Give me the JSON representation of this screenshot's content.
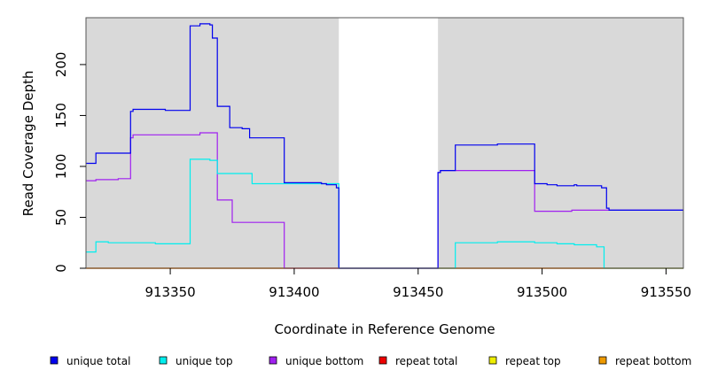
{
  "chart_data": {
    "type": "line",
    "xlabel": "Coordinate in Reference Genome",
    "ylabel": "Read Coverage Depth",
    "xlim": [
      913316,
      913557
    ],
    "ylim": [
      0,
      246
    ],
    "x_ticks": [
      "913350",
      "913400",
      "913450",
      "913500",
      "913550"
    ],
    "y_ticks": [
      "0",
      "50",
      "100",
      "150",
      "200"
    ],
    "grid": false,
    "background_color": "#d9d9d9",
    "gap_color": "#ffffff",
    "shaded_regions": [
      [
        913316,
        913418
      ],
      [
        913458,
        913557
      ]
    ],
    "legend_position": "bottom",
    "series": [
      {
        "name": "unique total",
        "color": "#0000ee",
        "x": [
          913316,
          913320,
          913320,
          913334,
          913334,
          913335,
          913335,
          913348,
          913348,
          913358,
          913358,
          913362,
          913362,
          913366,
          913366,
          913367,
          913367,
          913369,
          913369,
          913374,
          913374,
          913379,
          913379,
          913382,
          913382,
          913383,
          913383,
          913396,
          913396,
          913411,
          913411,
          913413,
          913413,
          913417,
          913417,
          913418,
          913418,
          913458,
          913458,
          913459,
          913459,
          913465,
          913465,
          913482,
          913482,
          913497,
          913497,
          913502,
          913502,
          913506,
          913506,
          913513,
          913513,
          913514,
          913514,
          913524,
          913524,
          913526,
          913526,
          913527,
          913527,
          913557
        ],
        "y": [
          103,
          103,
          113,
          113,
          154,
          154,
          156,
          156,
          155,
          155,
          238,
          238,
          240,
          240,
          239,
          239,
          226,
          226,
          159,
          159,
          138,
          138,
          137,
          137,
          128,
          128,
          128,
          128,
          84,
          84,
          83,
          83,
          82,
          82,
          79,
          79,
          0,
          0,
          94,
          94,
          96,
          96,
          121,
          121,
          122,
          122,
          83,
          83,
          82,
          82,
          81,
          81,
          82,
          82,
          81,
          81,
          79,
          79,
          59,
          59,
          57,
          57
        ]
      },
      {
        "name": "unique top",
        "color": "#00eeee",
        "x": [
          913316,
          913320,
          913320,
          913325,
          913325,
          913344,
          913344,
          913348,
          913348,
          913358,
          913358,
          913366,
          913366,
          913369,
          913369,
          913382,
          913382,
          913383,
          913383,
          913396,
          913396,
          913418,
          913418,
          913465,
          913465,
          913482,
          913482,
          913497,
          913497,
          913506,
          913506,
          913513,
          913513,
          913522,
          913522,
          913525,
          913525,
          913557
        ],
        "y": [
          16,
          16,
          26,
          26,
          25,
          25,
          24,
          24,
          24,
          24,
          107,
          107,
          106,
          106,
          93,
          93,
          93,
          93,
          83,
          83,
          83,
          83,
          0,
          0,
          25,
          25,
          26,
          26,
          25,
          25,
          24,
          24,
          23,
          23,
          21,
          21,
          0,
          0
        ]
      },
      {
        "name": "unique bottom",
        "color": "#a020f0",
        "x": [
          913316,
          913320,
          913320,
          913329,
          913329,
          913334,
          913334,
          913335,
          913335,
          913348,
          913348,
          913362,
          913362,
          913369,
          913369,
          913374,
          913374,
          913375,
          913375,
          913396,
          913396,
          913418,
          913418,
          913458,
          913458,
          913459,
          913459,
          913497,
          913497,
          913512,
          913512,
          913557
        ],
        "y": [
          86,
          86,
          87,
          87,
          88,
          88,
          128,
          128,
          131,
          131,
          131,
          131,
          133,
          133,
          67,
          67,
          67,
          67,
          45,
          45,
          0,
          0,
          0,
          0,
          94,
          94,
          96,
          96,
          56,
          56,
          57,
          57
        ]
      },
      {
        "name": "repeat total",
        "color": "#ee0000",
        "x": [
          913316,
          913557
        ],
        "y": [
          0,
          0
        ]
      },
      {
        "name": "repeat top",
        "color": "#eeee00",
        "x": [
          913316,
          913557
        ],
        "y": [
          0,
          0
        ]
      },
      {
        "name": "repeat bottom",
        "color": "#ee9a00",
        "x": [
          913316,
          913557
        ],
        "y": [
          0,
          0
        ]
      }
    ]
  }
}
